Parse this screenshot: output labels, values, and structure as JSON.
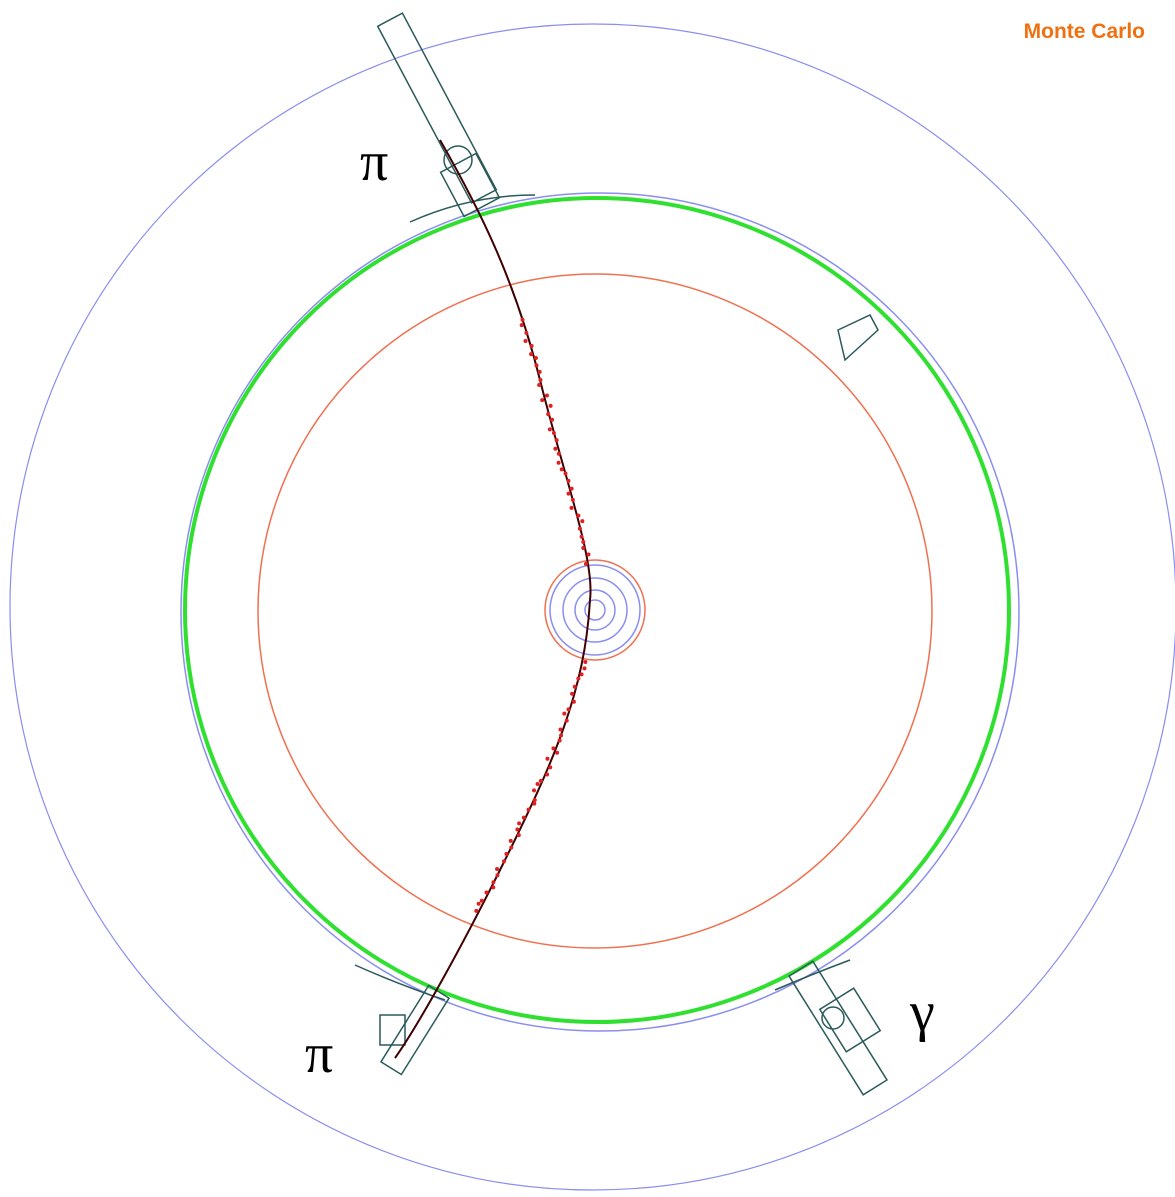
{
  "header": {
    "label": "Monte Carlo"
  },
  "particles": [
    {
      "label": "π"
    },
    {
      "label": "π"
    },
    {
      "label": "γ"
    }
  ]
}
